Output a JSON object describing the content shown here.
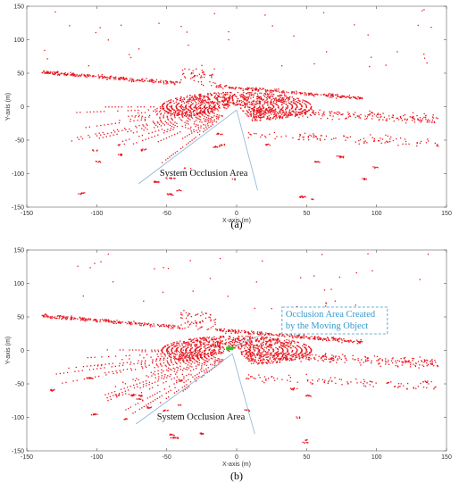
{
  "colors": {
    "points": "#e8141c",
    "moving_object": "#22cc22",
    "annotation_line": "#8ab4d8",
    "annotation_text_b": "#3399cc",
    "axis": "#555555",
    "frame": "#888888"
  },
  "chart_data": [
    {
      "type": "scatter",
      "panel": "a",
      "caption": "(a)",
      "xlabel": "X-axis (m)",
      "ylabel": "Y-axis (m)",
      "xlim": [
        -150,
        150
      ],
      "ylim": [
        -150,
        150
      ],
      "xticks": [
        "-150",
        "-100",
        "-50",
        "0",
        "50",
        "100",
        "150"
      ],
      "yticks": [
        "150",
        "100",
        "50",
        "0",
        "-50",
        "-100",
        "-150"
      ],
      "sensor_origin": [
        0,
        0
      ],
      "annotations": [
        {
          "text": "System Occlusion Area",
          "x": -55,
          "y": -103
        }
      ],
      "occlusion_wedge": {
        "from": [
          0,
          -5
        ],
        "to_left": [
          -70,
          -115
        ],
        "to_right": [
          15,
          -125
        ]
      },
      "moving_object": null
    },
    {
      "type": "scatter",
      "panel": "b",
      "caption": "(b)",
      "xlabel": "X-axis (m)",
      "ylabel": "Y-axis (m)",
      "xlim": [
        -150,
        150
      ],
      "ylim": [
        -150,
        150
      ],
      "xticks": [
        "-150",
        "-100",
        "-50",
        "0",
        "50",
        "100",
        "150"
      ],
      "yticks": [
        "150",
        "100",
        "50",
        "0",
        "-50",
        "-100",
        "-150"
      ],
      "sensor_origin": [
        0,
        0
      ],
      "annotations": [
        {
          "text": "System Occlusion Area",
          "x": -57,
          "y": -103
        },
        {
          "text": "Occlusion Area Created\nby the Moving Object",
          "x": 35,
          "y": 50,
          "boxed": true
        }
      ],
      "occlusion_wedge": {
        "from": [
          -3,
          -5
        ],
        "to_left": [
          -72,
          -110
        ],
        "to_right": [
          13,
          -125
        ]
      },
      "moving_object": {
        "x": -5,
        "y": 3
      }
    }
  ]
}
